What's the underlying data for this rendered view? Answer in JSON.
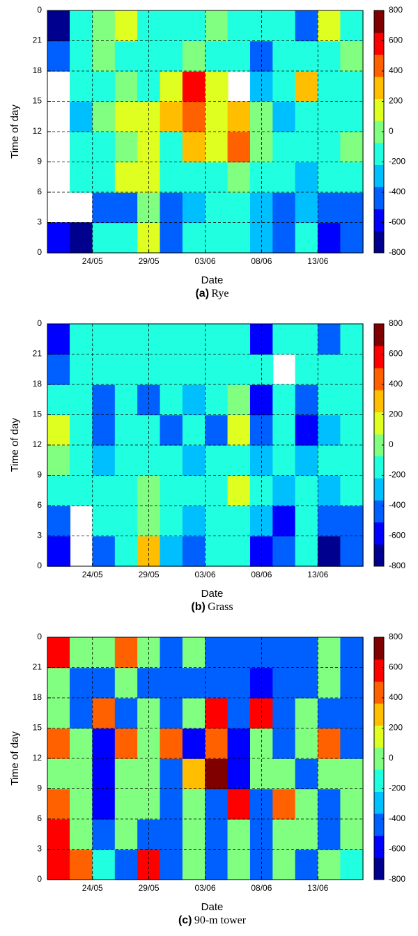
{
  "chart_data": [
    {
      "type": "contour",
      "label": "(a)",
      "caption": "Rye",
      "xlabel": "Date",
      "ylabel": "Time of day",
      "x": [
        141,
        143,
        145,
        147,
        149,
        151,
        153,
        155,
        157,
        159,
        161,
        163,
        165,
        167
      ],
      "y": [
        1.5,
        4.5,
        7.5,
        10.5,
        13.5,
        16.5,
        19.5,
        22.5
      ],
      "z": [
        [
          -600,
          -700,
          -200,
          -100,
          200,
          -500,
          -200,
          -200,
          -100,
          -300,
          -400,
          -200,
          -600,
          -400
        ],
        [
          null,
          null,
          -400,
          -500,
          0,
          -500,
          -300,
          -200,
          -200,
          -300,
          -500,
          -300,
          -400,
          -500
        ],
        [
          null,
          -200,
          -200,
          100,
          200,
          -200,
          -200,
          -100,
          0,
          -200,
          -200,
          -300,
          -200,
          -100
        ],
        [
          null,
          -200,
          -100,
          0,
          100,
          -200,
          300,
          200,
          500,
          0,
          -200,
          -200,
          -200,
          0
        ],
        [
          null,
          -300,
          0,
          100,
          200,
          300,
          500,
          200,
          300,
          0,
          -300,
          -200,
          -200,
          -100
        ],
        [
          null,
          -200,
          -100,
          0,
          -200,
          200,
          600,
          200,
          null,
          -300,
          -200,
          300,
          -100,
          -200
        ],
        [
          -500,
          -200,
          0,
          -100,
          -200,
          -100,
          0,
          -200,
          -100,
          -400,
          -200,
          -200,
          -100,
          0
        ],
        [
          -700,
          -200,
          0,
          200,
          -100,
          -200,
          -100,
          0,
          -100,
          -200,
          -200,
          -500,
          100,
          -200
        ]
      ],
      "xlim": [
        140,
        168
      ],
      "xticks": [
        {
          "value": 144,
          "label": "24/05"
        },
        {
          "value": 149,
          "label": "29/05"
        },
        {
          "value": 154,
          "label": "03/06"
        },
        {
          "value": 159,
          "label": "08/06"
        },
        {
          "value": 164,
          "label": "13/06"
        }
      ],
      "ylim": [
        0,
        24
      ],
      "yticks": [
        0,
        3,
        6,
        9,
        12,
        15,
        18,
        21,
        {
          "value": 24,
          "label": "0"
        }
      ],
      "clim": [
        -800,
        800
      ],
      "cticks": [
        -800,
        -600,
        -400,
        -200,
        0,
        200,
        400,
        600,
        800
      ],
      "grid": true,
      "colormap": [
        "#00008f",
        "#0000ff",
        "#0060ff",
        "#00bfff",
        "#20ffdf",
        "#80ff80",
        "#dfff20",
        "#ffbf00",
        "#ff6000",
        "#ff0000",
        "#800000"
      ]
    },
    {
      "type": "contour",
      "label": "(b)",
      "caption": "Grass",
      "xlabel": "Date",
      "ylabel": "Time of day",
      "x": [
        141,
        143,
        145,
        147,
        149,
        151,
        153,
        155,
        157,
        159,
        161,
        163,
        165,
        167
      ],
      "y": [
        1.5,
        4.5,
        7.5,
        10.5,
        13.5,
        16.5,
        19.5,
        22.5
      ],
      "z": [
        [
          -600,
          null,
          -400,
          -200,
          300,
          -300,
          -500,
          -200,
          -200,
          -600,
          -400,
          -200,
          -700,
          -400
        ],
        [
          -500,
          null,
          -200,
          -200,
          0,
          -200,
          -300,
          -200,
          -200,
          -300,
          -600,
          -200,
          -500,
          -400
        ],
        [
          -200,
          -200,
          -200,
          -100,
          0,
          -200,
          -200,
          -100,
          100,
          -200,
          -300,
          -200,
          -300,
          -200
        ],
        [
          0,
          -200,
          -300,
          -200,
          -100,
          -200,
          -300,
          -200,
          -200,
          -300,
          -200,
          -300,
          -100,
          -200
        ],
        [
          100,
          -200,
          -500,
          -200,
          -200,
          -400,
          -200,
          -500,
          100,
          -500,
          -200,
          -600,
          -300,
          -200
        ],
        [
          -200,
          -200,
          -400,
          -200,
          -400,
          -200,
          -300,
          -200,
          0,
          -600,
          -200,
          -400,
          -200,
          -200
        ],
        [
          -400,
          -200,
          -200,
          -200,
          -200,
          -100,
          -200,
          -200,
          -200,
          -200,
          null,
          -200,
          -200,
          -200
        ],
        [
          -600,
          -200,
          -100,
          -200,
          -200,
          -100,
          -200,
          -200,
          -100,
          -600,
          -100,
          -200,
          -500,
          -200
        ]
      ],
      "xlim": [
        140,
        168
      ],
      "xticks": [
        {
          "value": 144,
          "label": "24/05"
        },
        {
          "value": 149,
          "label": "29/05"
        },
        {
          "value": 154,
          "label": "03/06"
        },
        {
          "value": 159,
          "label": "08/06"
        },
        {
          "value": 164,
          "label": "13/06"
        }
      ],
      "ylim": [
        0,
        24
      ],
      "yticks": [
        0,
        3,
        6,
        9,
        12,
        15,
        18,
        21,
        {
          "value": 24,
          "label": "0"
        }
      ],
      "clim": [
        -800,
        800
      ],
      "cticks": [
        -800,
        -600,
        -400,
        -200,
        0,
        200,
        400,
        600,
        800
      ],
      "grid": true,
      "colormap": [
        "#00008f",
        "#0000ff",
        "#0060ff",
        "#00bfff",
        "#20ffdf",
        "#80ff80",
        "#dfff20",
        "#ffbf00",
        "#ff6000",
        "#ff0000",
        "#800000"
      ]
    },
    {
      "type": "contour",
      "label": "(c)",
      "caption": "90-m tower",
      "xlabel": "Date",
      "ylabel": "Time of day",
      "x": [
        141,
        143,
        145,
        147,
        149,
        151,
        153,
        155,
        157,
        159,
        161,
        163,
        165,
        167
      ],
      "y": [
        1.5,
        4.5,
        7.5,
        10.5,
        13.5,
        16.5,
        19.5,
        22.5
      ],
      "z": [
        [
          600,
          500,
          -200,
          -500,
          600,
          -500,
          0,
          -500,
          0,
          -500,
          0,
          -500,
          0,
          -200
        ],
        [
          600,
          0,
          -500,
          0,
          -500,
          -500,
          0,
          -400,
          0,
          -500,
          0,
          0,
          -500,
          0
        ],
        [
          400,
          0,
          -600,
          0,
          0,
          -500,
          0,
          -400,
          600,
          -500,
          500,
          0,
          -500,
          0
        ],
        [
          0,
          0,
          -600,
          0,
          0,
          -400,
          300,
          700,
          -600,
          0,
          0,
          -500,
          0,
          0
        ],
        [
          500,
          0,
          -600,
          500,
          0,
          500,
          -600,
          500,
          -600,
          0,
          -500,
          0,
          500,
          -500
        ],
        [
          0,
          -500,
          500,
          -500,
          0,
          -500,
          0,
          600,
          -500,
          600,
          -500,
          0,
          -500,
          -500
        ],
        [
          0,
          -500,
          -500,
          0,
          -500,
          -500,
          -500,
          -500,
          -500,
          -600,
          -500,
          -500,
          0,
          -500
        ],
        [
          600,
          0,
          0,
          500,
          0,
          -500,
          0,
          -500,
          -500,
          -500,
          -500,
          -500,
          0,
          -500
        ]
      ],
      "xlim": [
        140,
        168
      ],
      "xticks": [
        {
          "value": 144,
          "label": "24/05"
        },
        {
          "value": 149,
          "label": "29/05"
        },
        {
          "value": 154,
          "label": "03/06"
        },
        {
          "value": 159,
          "label": "08/06"
        },
        {
          "value": 164,
          "label": "13/06"
        }
      ],
      "ylim": [
        0,
        24
      ],
      "yticks": [
        0,
        3,
        6,
        9,
        12,
        15,
        18,
        21,
        {
          "value": 24,
          "label": "0"
        }
      ],
      "clim": [
        -800,
        800
      ],
      "cticks": [
        -800,
        -600,
        -400,
        -200,
        0,
        200,
        400,
        600,
        800
      ],
      "grid": true,
      "colormap": [
        "#00008f",
        "#0000ff",
        "#0060ff",
        "#00bfff",
        "#20ffdf",
        "#80ff80",
        "#dfff20",
        "#ffbf00",
        "#ff6000",
        "#ff0000",
        "#800000"
      ]
    }
  ]
}
